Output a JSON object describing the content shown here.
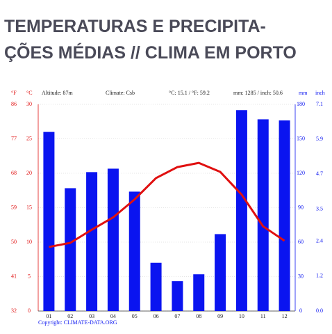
{
  "chart_data": {
    "type": "bar_line",
    "title_lines": [
      "TEMPERATURAS E PRECIPITA-",
      "ÇÕES MÉDIAS // CLIMA EM PORTO"
    ],
    "header": {
      "f_unit": "°F",
      "c_unit": "°C",
      "altitude": "Altitude: 87m",
      "climate": "Climate: Csb",
      "temp_avg": "°C: 15.1 / °F: 59.2",
      "precip_total": "mm: 1285 / inch: 50.6",
      "mm_unit": "mm",
      "inch_unit": "inch"
    },
    "copyright": "Copyright: CLIMATE-DATA.ORG",
    "categories": [
      "01",
      "02",
      "03",
      "04",
      "05",
      "06",
      "07",
      "08",
      "09",
      "10",
      "11",
      "12"
    ],
    "series": [
      {
        "name": "mm",
        "color": "#0a14f0",
        "axis": "y2",
        "values": [
          156,
          107,
          121,
          124,
          104,
          42,
          26,
          32,
          67,
          175,
          167,
          166
        ]
      },
      {
        "name": "°C",
        "color": "#e01010",
        "values": [
          9.3,
          9.9,
          11.8,
          13.6,
          16.2,
          19.3,
          20.9,
          21.5,
          20.2,
          16.9,
          12.3,
          10.2
        ]
      }
    ],
    "ylim": [
      0,
      30
    ],
    "yticks": [
      0,
      5,
      10,
      15,
      20,
      25,
      30
    ],
    "yflim": [
      32,
      86
    ],
    "yfticks": [
      32,
      41,
      50,
      59,
      68,
      77,
      86
    ],
    "y2lim": [
      0,
      180
    ],
    "y2ticks": [
      0,
      30,
      60,
      90,
      120,
      150,
      180
    ],
    "y2inchlim": [
      0,
      7.1
    ],
    "y2inchticks": [
      {
        "value": 0,
        "label": "0.0"
      },
      1.2,
      2.4,
      3.5,
      4.7,
      5.9,
      7.1
    ],
    "grid": true
  }
}
